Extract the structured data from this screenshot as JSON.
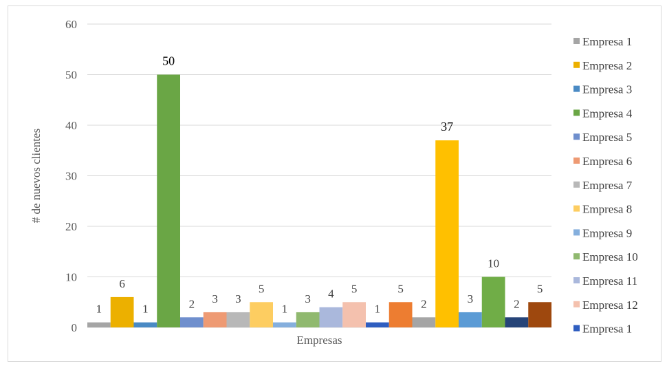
{
  "chart_data": {
    "type": "bar",
    "title": "",
    "xlabel": "Empresas",
    "ylabel": "# de nuevos clientes",
    "ylim": [
      0,
      60
    ],
    "yticks": [
      0,
      10,
      20,
      30,
      40,
      50,
      60
    ],
    "grid": true,
    "legend_position": "right",
    "series": [
      {
        "name": "Empresa 1",
        "value": 1,
        "color": "#a5a5a5"
      },
      {
        "name": "Empresa 2",
        "value": 6,
        "color": "#ecb000"
      },
      {
        "name": "Empresa 3",
        "value": 1,
        "color": "#4a8ac4"
      },
      {
        "name": "Empresa 4",
        "value": 50,
        "color": "#6aa645"
      },
      {
        "name": "Empresa 5",
        "value": 2,
        "color": "#6f8fcd"
      },
      {
        "name": "Empresa 6",
        "value": 3,
        "color": "#ee9a73"
      },
      {
        "name": "Empresa 7",
        "value": 3,
        "color": "#b8b8b8"
      },
      {
        "name": "Empresa 8",
        "value": 5,
        "color": "#fdcd61"
      },
      {
        "name": "Empresa 9",
        "value": 1,
        "color": "#85afdd"
      },
      {
        "name": "Empresa 10",
        "value": 3,
        "color": "#90b96f"
      },
      {
        "name": "Empresa 11",
        "value": 4,
        "color": "#aab8dc"
      },
      {
        "name": "Empresa 12",
        "value": 5,
        "color": "#f4c1ae"
      },
      {
        "name": "Empresa 1",
        "value": 1,
        "color": "#2f5ec0"
      },
      {
        "name": "",
        "value": 5,
        "color": "#ed7d31"
      },
      {
        "name": "",
        "value": 2,
        "color": "#a5a5a5"
      },
      {
        "name": "",
        "value": 37,
        "color": "#ffc000"
      },
      {
        "name": "",
        "value": 3,
        "color": "#5b9bd5"
      },
      {
        "name": "",
        "value": 10,
        "color": "#70ad47"
      },
      {
        "name": "",
        "value": 2,
        "color": "#264478"
      },
      {
        "name": "",
        "value": 5,
        "color": "#9e480e"
      }
    ]
  }
}
